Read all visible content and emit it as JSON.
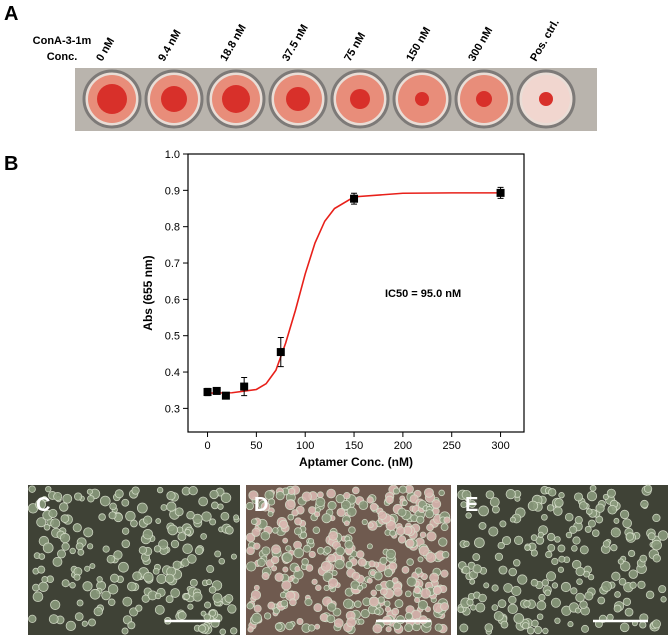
{
  "panel_a": {
    "label": "A",
    "row_label": [
      "ConA-3-1m",
      "Conc."
    ],
    "well_labels": [
      "0 nM",
      "9.4 nM",
      "18.8 nM",
      "37.5 nM",
      "75 nM",
      "150 nM",
      "300 nM",
      "Pos. ctrl."
    ]
  },
  "chart_data": {
    "type": "scatter",
    "label": "B",
    "x_label": "Aptamer Conc. (nM)",
    "y_label": "Abs (655 nm)",
    "annotation": "IC50 = 95.0 nM",
    "x": [
      0,
      9.4,
      18.8,
      37.5,
      75,
      150,
      300
    ],
    "values": [
      0.345,
      0.348,
      0.335,
      0.36,
      0.455,
      0.877,
      0.893
    ],
    "errors": [
      0.01,
      0.008,
      0.008,
      0.025,
      0.04,
      0.015,
      0.015
    ],
    "color": "#000000",
    "fit": {
      "color": "#e8201a",
      "x": [
        0,
        25,
        50,
        60,
        70,
        80,
        90,
        100,
        110,
        120,
        130,
        150,
        200,
        250,
        300
      ],
      "values": [
        0.342,
        0.343,
        0.352,
        0.368,
        0.405,
        0.48,
        0.57,
        0.67,
        0.755,
        0.815,
        0.85,
        0.882,
        0.892,
        0.893,
        0.893
      ]
    },
    "xlim": [
      -20,
      324
    ],
    "ylim": [
      0.235,
      1.0
    ],
    "xticks": [
      0,
      50,
      100,
      150,
      200,
      250,
      300
    ],
    "yticks": [
      0.3,
      0.4,
      0.5,
      0.6,
      0.7,
      0.8,
      0.9,
      {
        "value": 1,
        "label": "1.0"
      }
    ]
  },
  "micrographs": [
    {
      "label": "C"
    },
    {
      "label": "D"
    },
    {
      "label": "E"
    }
  ]
}
